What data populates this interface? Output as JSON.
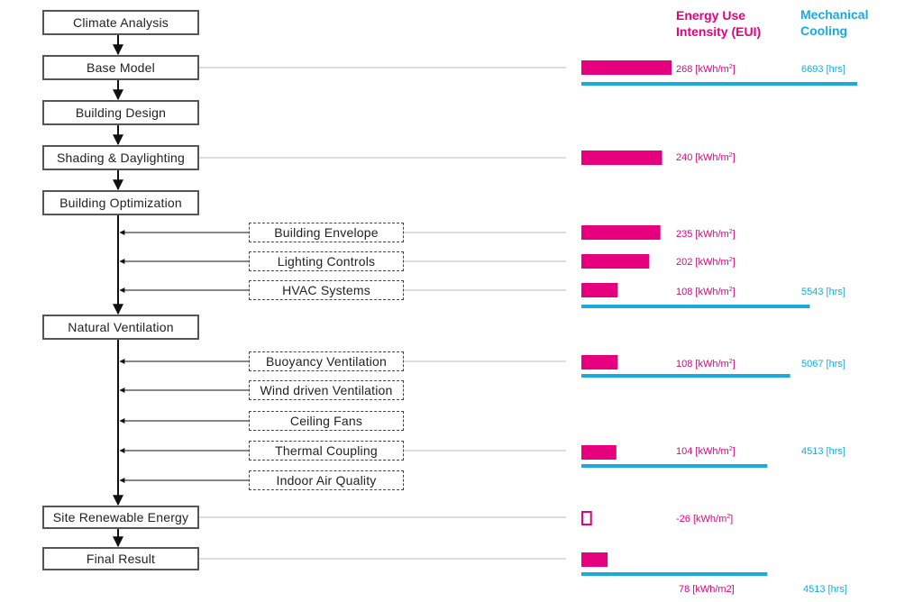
{
  "headers": {
    "eui": [
      "Energy Use",
      "Intensity (EUI)"
    ],
    "cooling": [
      "Mechanical",
      "Cooling"
    ]
  },
  "steps": [
    {
      "key": "climate",
      "label": "Climate Analysis"
    },
    {
      "key": "base",
      "label": "Base Model",
      "eui": 268,
      "eui_text": "268 [kWh/m",
      "eui_sup": "2",
      "eui_close": "]",
      "cool_hrs": 6693,
      "cool_text": "6693 [hrs]"
    },
    {
      "key": "design",
      "label": "Building Design"
    },
    {
      "key": "shading",
      "label": "Shading & Daylighting",
      "eui": 240,
      "eui_text": "240 [kWh/m",
      "eui_sup": "2",
      "eui_close": "]"
    },
    {
      "key": "optimization",
      "label": "Building Optimization"
    },
    {
      "key": "ventilation",
      "label": "Natural Ventilation"
    },
    {
      "key": "renewable",
      "label": "Site Renewable Energy",
      "eui": -26,
      "eui_text": "-26 [kWh/m",
      "eui_sup": "2",
      "eui_close": "]"
    },
    {
      "key": "final",
      "label": "Final Result",
      "eui": 78,
      "eui_text": "78 [kWh/m2]",
      "cool_hrs": 4513,
      "cool_text": "4513 [hrs]"
    }
  ],
  "substeps": [
    {
      "key": "envelope",
      "label": "Building Envelope",
      "eui": 235,
      "eui_text": "235 [kWh/m",
      "eui_sup": "2",
      "eui_close": "]"
    },
    {
      "key": "lighting",
      "label": "Lighting Controls",
      "eui": 202,
      "eui_text": "202 [kWh/m",
      "eui_sup": "2",
      "eui_close": "]"
    },
    {
      "key": "hvac",
      "label": "HVAC Systems",
      "eui": 108,
      "eui_text": "108 [kWh/m",
      "eui_sup": "2",
      "eui_close": "]",
      "cool_hrs": 5543,
      "cool_text": "5543 [hrs]"
    },
    {
      "key": "buoyancy",
      "label": "Buoyancy Ventilation",
      "eui": 108,
      "eui_text": "108 [kWh/m",
      "eui_sup": "2",
      "eui_close": "]",
      "cool_hrs": 5067,
      "cool_text": "5067 [hrs]"
    },
    {
      "key": "wind",
      "label": "Wind driven Ventilation"
    },
    {
      "key": "fans",
      "label": "Ceiling Fans"
    },
    {
      "key": "thermal",
      "label": "Thermal Coupling",
      "eui": 104,
      "eui_text": "104 [kWh/m",
      "eui_sup": "2",
      "eui_close": "]",
      "cool_hrs": 4513,
      "cool_text": "4513 [hrs]"
    },
    {
      "key": "iaq",
      "label": "Indoor Air Quality"
    }
  ],
  "colors": {
    "eui": "#e6007e",
    "cooling": "#1ba9e1",
    "connector": "#bbbbbb",
    "flow": "#111111"
  }
}
